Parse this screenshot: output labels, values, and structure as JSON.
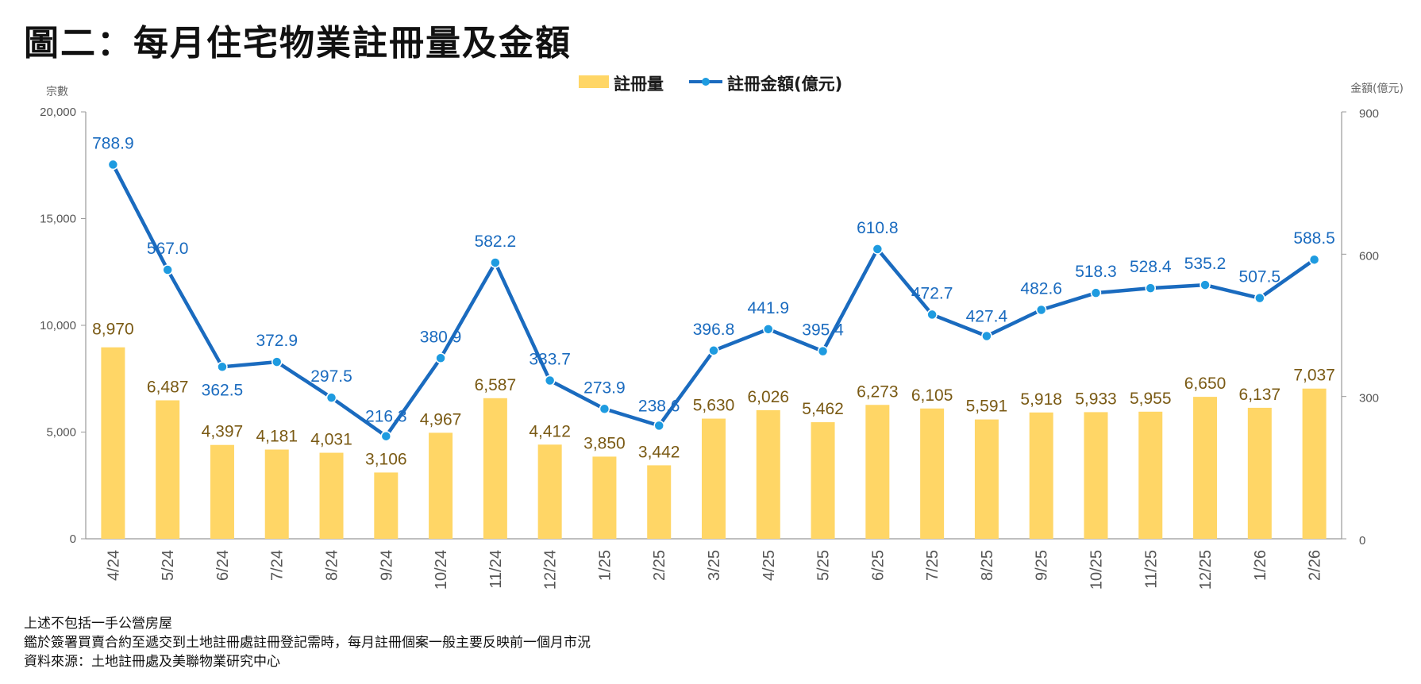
{
  "title": "圖二：每月住宅物業註冊量及金額",
  "notes": [
    "上述不包括一手公營房屋",
    "鑑於簽署買賣合約至遞交到土地註冊處註冊登記需時，每月註冊個案一般主要反映前一個月市況",
    "資料來源：土地註冊處及美聯物業研究中心"
  ],
  "chart_data": {
    "type": "bar+line",
    "categories": [
      "4/24",
      "5/24",
      "6/24",
      "7/24",
      "8/24",
      "9/24",
      "10/24",
      "11/24",
      "12/24",
      "1/25",
      "2/25",
      "3/25",
      "4/25",
      "5/25",
      "6/25",
      "7/25",
      "8/25",
      "9/25",
      "10/25",
      "11/25",
      "12/25",
      "1/26",
      "2/26"
    ],
    "series": [
      {
        "name": "註冊量",
        "axis": "left",
        "kind": "bar",
        "color": "#FFD666",
        "values": [
          8970,
          6487,
          4397,
          4181,
          4031,
          3106,
          4967,
          6587,
          4412,
          3850,
          3442,
          5630,
          6026,
          5462,
          6273,
          6105,
          5591,
          5918,
          5933,
          5955,
          6650,
          6137,
          7037
        ],
        "labels": [
          "8,970",
          "6,487",
          "4,397",
          "4,181",
          "4,031",
          "3,106",
          "4,967",
          "6,587",
          "4,412",
          "3,850",
          "3,442",
          "5,630",
          "6,026",
          "5,462",
          "6,273",
          "6,105",
          "5,591",
          "5,918",
          "5,933",
          "5,955",
          "6,650",
          "6,137",
          "7,037"
        ]
      },
      {
        "name": "註冊金額(億元)",
        "axis": "right",
        "kind": "line",
        "color": "#1A6BBF",
        "values": [
          788.9,
          567.0,
          362.5,
          372.9,
          297.5,
          216.3,
          380.9,
          582.2,
          333.7,
          273.9,
          238.6,
          396.8,
          441.9,
          395.4,
          610.8,
          472.7,
          427.4,
          482.6,
          518.3,
          528.4,
          535.2,
          507.5,
          588.5
        ],
        "labels": [
          "788.9",
          "567.0",
          "362.5",
          "372.9",
          "297.5",
          "216.3",
          "380.9",
          "582.2",
          "333.7",
          "273.9",
          "238.6",
          "396.8",
          "441.9",
          "395.4",
          "610.8",
          "472.7",
          "427.4",
          "482.6",
          "518.3",
          "528.4",
          "535.2",
          "507.5",
          "588.5"
        ]
      }
    ],
    "left_axis": {
      "label": "宗數",
      "range": [
        0,
        20000
      ],
      "ticks": [
        0,
        5000,
        10000,
        15000,
        20000
      ],
      "tick_labels": [
        "0",
        "5,000",
        "10,000",
        "15,000",
        "20,000"
      ]
    },
    "right_axis": {
      "label": "金額(億元)",
      "range": [
        0,
        900
      ],
      "ticks": [
        0,
        300,
        600,
        900
      ],
      "tick_labels": [
        "0",
        "300",
        "600",
        "900"
      ]
    },
    "legend": {
      "position": "top-center",
      "items": [
        "註冊量",
        "註冊金額(億元)"
      ]
    },
    "grid": false
  }
}
